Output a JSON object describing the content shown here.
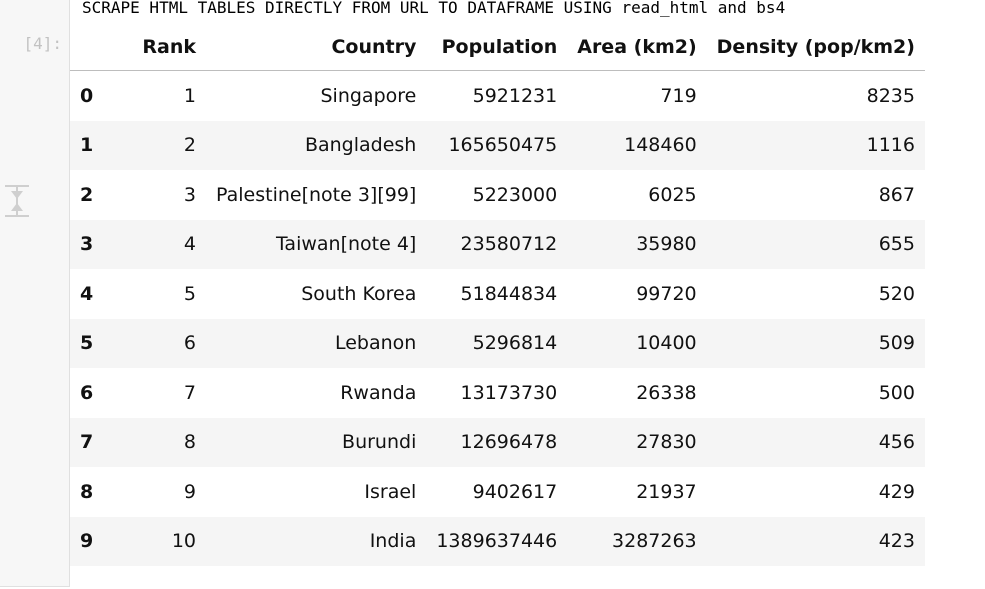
{
  "cell": {
    "title": "SCRAPE HTML TABLES DIRECTLY FROM URL TO DATAFRAME USING read_html and bs4",
    "prompt": "[4]:"
  },
  "table": {
    "headers": [
      "",
      "Rank",
      "Country",
      "Population",
      "Area (km2)",
      "Density (pop/km2)"
    ],
    "rows": [
      {
        "index": "0",
        "rank": "1",
        "country": "Singapore",
        "population": "5921231",
        "area": "719",
        "density": "8235"
      },
      {
        "index": "1",
        "rank": "2",
        "country": "Bangladesh",
        "population": "165650475",
        "area": "148460",
        "density": "1116"
      },
      {
        "index": "2",
        "rank": "3",
        "country": "Palestine[note 3][99]",
        "population": "5223000",
        "area": "6025",
        "density": "867"
      },
      {
        "index": "3",
        "rank": "4",
        "country": "Taiwan[note 4]",
        "population": "23580712",
        "area": "35980",
        "density": "655"
      },
      {
        "index": "4",
        "rank": "5",
        "country": "South Korea",
        "population": "51844834",
        "area": "99720",
        "density": "520"
      },
      {
        "index": "5",
        "rank": "6",
        "country": "Lebanon",
        "population": "5296814",
        "area": "10400",
        "density": "509"
      },
      {
        "index": "6",
        "rank": "7",
        "country": "Rwanda",
        "population": "13173730",
        "area": "26338",
        "density": "500"
      },
      {
        "index": "7",
        "rank": "8",
        "country": "Burundi",
        "population": "12696478",
        "area": "27830",
        "density": "456"
      },
      {
        "index": "8",
        "rank": "9",
        "country": "Israel",
        "population": "9402617",
        "area": "21937",
        "density": "429"
      },
      {
        "index": "9",
        "rank": "10",
        "country": "India",
        "population": "1389637446",
        "area": "3287263",
        "density": "423"
      }
    ]
  },
  "icons": {
    "collapser": "collapse-output-icon"
  },
  "colors": {
    "prompt": "#c2c2c2",
    "stripe": "#f5f5f5",
    "gutter": "#f7f7f7"
  }
}
